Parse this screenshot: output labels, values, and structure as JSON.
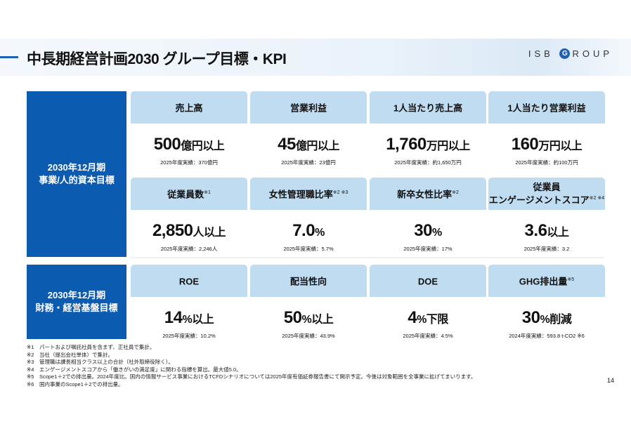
{
  "header": {
    "title": "中長期経営計画2030 グループ目標・KPI",
    "logo_pre": "ISB ",
    "logo_g": "G",
    "logo_post": "ROUP"
  },
  "sections": [
    {
      "label_line1": "2030年12月期",
      "label_line2": "事業/人的資本目標"
    },
    {
      "label_line1": "2030年12月期",
      "label_line2": "財務・経営基盤目標"
    }
  ],
  "kpis": [
    {
      "title": "売上高",
      "note": "",
      "value": "500",
      "unit": "億円以上",
      "actual": "2025年度実績：370億円"
    },
    {
      "title": "営業利益",
      "note": "",
      "value": "45",
      "unit": "億円以上",
      "actual": "2025年度実績：23億円"
    },
    {
      "title": "1人当たり売上高",
      "note": "",
      "value": "1,760",
      "unit": "万円以上",
      "actual": "2025年度実績：約1,650万円"
    },
    {
      "title": "1人当たり営業利益",
      "note": "",
      "value": "160",
      "unit": "万円以上",
      "actual": "2025年度実績：約100万円"
    },
    {
      "title": "従業員数",
      "note": "※1",
      "value": "2,850",
      "unit": "人以上",
      "actual": "2025年度実績：2,246人"
    },
    {
      "title": "女性管理職比率",
      "note": "※2 ※3",
      "value": "7.0",
      "unit": "%",
      "actual": "2025年度実績：5.7%"
    },
    {
      "title": "新卒女性比率",
      "note": "※2",
      "value": "30",
      "unit": "%",
      "actual": "2025年度実績：17%"
    },
    {
      "title": "従業員\nエンゲージメントスコア",
      "note": "※2 ※4",
      "value": "3.6",
      "unit": "以上",
      "actual": "2025年度実績：3.2"
    },
    {
      "title": "ROE",
      "note": "",
      "value": "14",
      "unit": "%以上",
      "actual": "2025年度実績：10.2%"
    },
    {
      "title": "配当性向",
      "note": "",
      "value": "50",
      "unit": "%以上",
      "actual": "2025年度実績：43.9%"
    },
    {
      "title": "DOE",
      "note": "",
      "value": "4",
      "unit": "%下限",
      "actual": "2025年度実績：4.5%"
    },
    {
      "title": "GHG排出量",
      "note": "※5",
      "value": "30",
      "unit": "%削減",
      "actual": "2024年度実績：593.8 t-CO2 ※6"
    }
  ],
  "footnotes": [
    "※1　パートおよび嘱託社員を含まず、正社員で集計。",
    "※2　当社（提出会社単体）で集計。",
    "※3　管理職は課長相当クラス以上の合計（社外取締役除く）。",
    "※4　エンゲージメントスコアから「働きがいの満足度」に関わる指標を算出。最大値5.0。",
    "※5　Scope1＋2での排出量。2024年度比。国内の情報サービス事業におけるTCFDシナリオについては2025年度有価証券報告書にて開示予定。今後は対象範囲を全事業に拡げてまいります。",
    "※6　国内事業のScope1＋2での排出量。"
  ],
  "page_number": "14"
}
